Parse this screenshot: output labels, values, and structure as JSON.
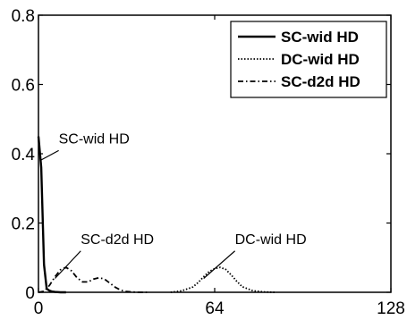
{
  "chart_data": {
    "type": "line",
    "xlim": [
      0,
      128
    ],
    "ylim": [
      0,
      0.8
    ],
    "x_ticks": [
      0,
      64,
      128
    ],
    "y_ticks": [
      0,
      0.2,
      0.4,
      0.6,
      0.8
    ],
    "x_tick_labels": [
      "0",
      "64",
      "128"
    ],
    "y_tick_labels": [
      "0",
      "0.2",
      "0.4",
      "0.6",
      "0.8"
    ],
    "grid": false,
    "legend_position": "top-right",
    "series": [
      {
        "name": "SC-wid HD",
        "style": "solid",
        "x": [
          0,
          1,
          2,
          3,
          4,
          5,
          6,
          8,
          10
        ],
        "y": [
          0.45,
          0.36,
          0.08,
          0.01,
          0.005,
          0.002,
          0.001,
          0.0,
          0.0
        ]
      },
      {
        "name": "DC-wid HD",
        "style": "dotted",
        "x": [
          48,
          52,
          56,
          58,
          60,
          62,
          64,
          66,
          68,
          70,
          72,
          74,
          78,
          82,
          86
        ],
        "y": [
          0.0,
          0.004,
          0.015,
          0.028,
          0.045,
          0.06,
          0.068,
          0.072,
          0.066,
          0.05,
          0.032,
          0.016,
          0.004,
          0.001,
          0.0
        ]
      },
      {
        "name": "SC-d2d HD",
        "style": "dashdot",
        "x": [
          0,
          2,
          4,
          6,
          8,
          10,
          12,
          14,
          16,
          18,
          20,
          22,
          24,
          26,
          28,
          30,
          32,
          36,
          40
        ],
        "y": [
          0.0,
          0.003,
          0.02,
          0.045,
          0.065,
          0.072,
          0.062,
          0.042,
          0.03,
          0.03,
          0.038,
          0.042,
          0.038,
          0.026,
          0.014,
          0.006,
          0.002,
          0.0,
          0.0
        ]
      }
    ],
    "annotations": [
      {
        "text": "SC-wid HD",
        "series": "SC-wid HD",
        "point": [
          0.5,
          0.38
        ],
        "text_anchor": [
          8,
          0.43
        ]
      },
      {
        "text": "SC-d2d HD",
        "series": "SC-d2d HD",
        "point": [
          6,
          0.04
        ],
        "text_anchor": [
          16,
          0.14
        ]
      },
      {
        "text": "DC-wid HD",
        "series": "DC-wid HD",
        "point": [
          60,
          0.04
        ],
        "text_anchor": [
          72,
          0.14
        ]
      }
    ]
  }
}
